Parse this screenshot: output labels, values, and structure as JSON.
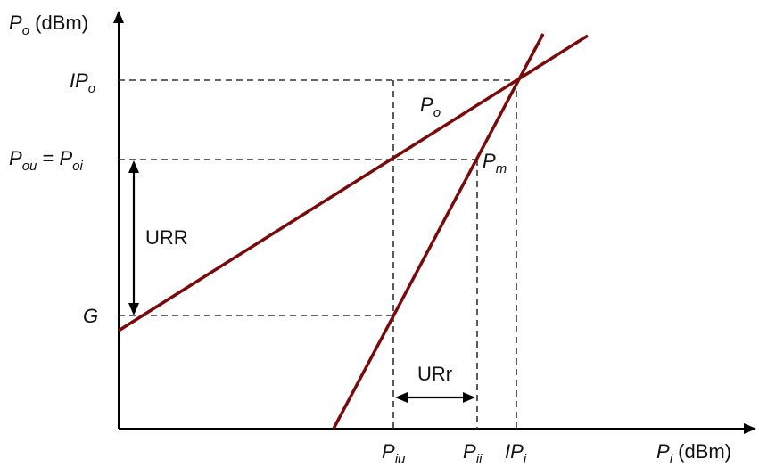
{
  "diagram": {
    "y_axis": {
      "var": "P",
      "sub": "o",
      "unit": " (dBm)"
    },
    "x_axis": {
      "var": "P",
      "sub": "i",
      "unit": " (dBm)"
    },
    "y_ticks": {
      "ipo": {
        "pre": "IP",
        "sub": "o"
      },
      "pou": {
        "a": "P",
        "a_sub": "ou",
        "eq": " = ",
        "b": "P",
        "b_sub": "oi"
      },
      "g": {
        "text": "G"
      }
    },
    "x_ticks": {
      "piu": {
        "var": "P",
        "sub": "iu"
      },
      "pii": {
        "var": "P",
        "sub": "ii"
      },
      "ipi": {
        "pre": "IP",
        "sub": "i"
      }
    },
    "curves": {
      "po": {
        "var": "P",
        "sub": "o",
        "color": "#7a0a0a"
      },
      "pm": {
        "var": "P",
        "sub": "m",
        "color": "#7a0a0a"
      }
    },
    "annotations": {
      "urr": "URR",
      "urr_small": "URr"
    }
  }
}
